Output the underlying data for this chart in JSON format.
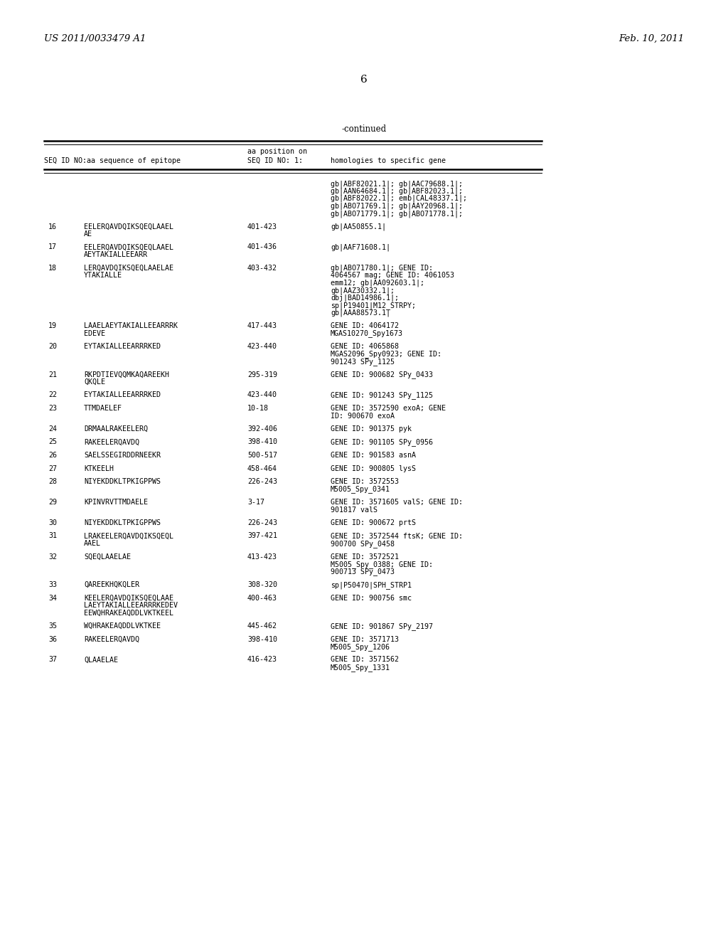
{
  "header_left": "US 2011/0033479 A1",
  "header_right": "Feb. 10, 2011",
  "page_number": "6",
  "continued_label": "-continued",
  "bg_color": "#ffffff",
  "text_color": "#000000",
  "rows": [
    {
      "num": "",
      "seq": "",
      "pos": "",
      "homology": "gb|ABF82021.1|; gb|AAC79688.1|;\ngb|AAN64684.1|; gb|ABF82023.1|;\ngb|ABF82022.1|; emb|CAL48337.1|;\ngb|ABO71769.1|; gb|AAY20968.1|;\ngb|ABO71779.1|; gb|ABO71778.1|;"
    },
    {
      "num": "16",
      "seq": "EELERQAVDQIKSQEQLAAEL\nAE",
      "pos": "401-423",
      "homology": "gb|AA50855.1|"
    },
    {
      "num": "17",
      "seq": "EELERQAVDQIKSQEQLAAEL\nAEYTAKIALLEEARR",
      "pos": "401-436",
      "homology": "gb|AAF71608.1|"
    },
    {
      "num": "18",
      "seq": "LERQAVDQIKSQEQLAAELAE\nYTAKIALLE",
      "pos": "403-432",
      "homology": "gb|ABO71780.1|; GENE ID:\n4064567 mag; GENE ID: 4061053\nemm12; gb|AA092603.1|;\ngb|AAZ30332.1|;\ndbj|BAD14986.1|;\nsp|P19401|M12_STRPY;\ngb|AAA88573.1|"
    },
    {
      "num": "19",
      "seq": "LAAELAEYTAKIALLEEARRRK\nEDEVE",
      "pos": "417-443",
      "homology": "GENE ID: 4064172\nMGAS10270_Spy1673"
    },
    {
      "num": "20",
      "seq": "EYTAKIALLEEARRRKED",
      "pos": "423-440",
      "homology": "GENE ID: 4065868\nMGAS2096_Spy0923; GENE ID:\n901243 SPy_1125"
    },
    {
      "num": "21",
      "seq": "RKPDTIEVQQMKAQAREEKH\nQKQLE",
      "pos": "295-319",
      "homology": "GENE ID: 900682 SPy_0433"
    },
    {
      "num": "22",
      "seq": "EYTAKIALLEEARRRKED",
      "pos": "423-440",
      "homology": "GENE ID: 901243 SPy_1125"
    },
    {
      "num": "23",
      "seq": "TTMDAELEF",
      "pos": "10-18",
      "homology": "GENE ID: 3572590 exoA; GENE\nID: 900670 exoA"
    },
    {
      "num": "24",
      "seq": "DRMAALRAKEELERQ",
      "pos": "392-406",
      "homology": "GENE ID: 901375 pyk"
    },
    {
      "num": "25",
      "seq": "RAKEELERQAVDQ",
      "pos": "398-410",
      "homology": "GENE ID: 901105 SPy_0956"
    },
    {
      "num": "26",
      "seq": "SAELSSEGIRDDRNEEKR",
      "pos": "500-517",
      "homology": "GENE ID: 901583 asnA"
    },
    {
      "num": "27",
      "seq": "KTKEELH",
      "pos": "458-464",
      "homology": "GENE ID: 900805 lysS"
    },
    {
      "num": "28",
      "seq": "NIYEKDDKLTPKIGPPWS",
      "pos": "226-243",
      "homology": "GENE ID: 3572553\nM5005_Spy_0341"
    },
    {
      "num": "29",
      "seq": "KPINVRVTTMDAELE",
      "pos": "3-17",
      "homology": "GENE ID: 3571605 valS; GENE ID:\n901817 valS"
    },
    {
      "num": "30",
      "seq": "NIYEKDDKLTPKIGPPWS",
      "pos": "226-243",
      "homology": "GENE ID: 900672 prtS"
    },
    {
      "num": "31",
      "seq": "LRAKEELERQAVDQIKSQEQL\nAAEL",
      "pos": "397-421",
      "homology": "GENE ID: 3572544 ftsK; GENE ID:\n900700 SPy_0458"
    },
    {
      "num": "32",
      "seq": "SQEQLAAELAE",
      "pos": "413-423",
      "homology": "GENE ID: 3572521\nM5005_Spy_0388; GENE ID:\n900713 SPy_0473"
    },
    {
      "num": "33",
      "seq": "QAREEKHQKQLER",
      "pos": "308-320",
      "homology": "sp|P50470|SPH_STRP1"
    },
    {
      "num": "34",
      "seq": "KEELERQAVDQIKSQEQLAAE\nLAEYTAKIALLEEARRRKEDEV\nEEWQHRAKEAQDDLVKTKEEL",
      "pos": "400-463",
      "homology": "GENE ID: 900756 smc"
    },
    {
      "num": "35",
      "seq": "WQHRAKEAQDDLVKTKEE",
      "pos": "445-462",
      "homology": "GENE ID: 901867 SPy_2197"
    },
    {
      "num": "36",
      "seq": "RAKEELERQAVDQ",
      "pos": "398-410",
      "homology": "GENE ID: 3571713\nM5005_Spy_1206"
    },
    {
      "num": "37",
      "seq": "QLAAELAE",
      "pos": "416-423",
      "homology": "GENE ID: 3571562\nM5005_Spy_1331"
    }
  ]
}
